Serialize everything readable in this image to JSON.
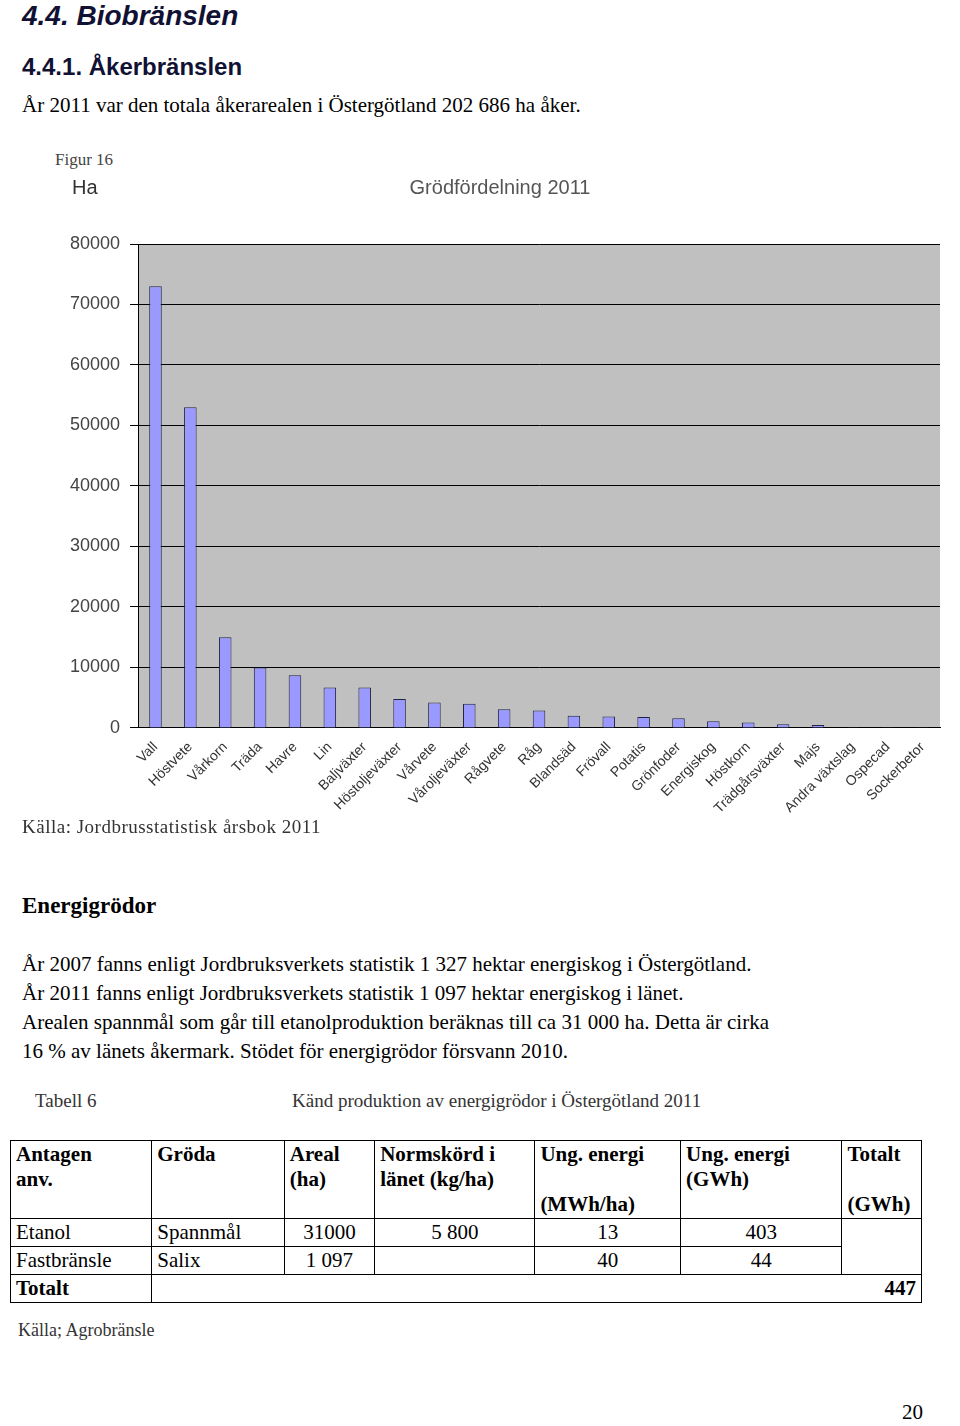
{
  "heading": "4.4. Biobränslen",
  "subheading": "4.4.1. Åkerbränslen",
  "intro": "År 2011 var den totala åkerarealen i Östergötland 202 686 ha åker.",
  "figure_label": "Figur 16",
  "unit_label": "Ha",
  "chart_data": {
    "type": "bar",
    "title": "Grödfördelning 2011",
    "categories": [
      "Vall",
      "Höstvete",
      "Vårkorn",
      "Träda",
      "Havre",
      "Lin",
      "Baljväxter",
      "Höstoljeväxter",
      "Vårvete",
      "Våroljeväxter",
      "Rågvete",
      "Råg",
      "Blandsäd",
      "Frövall",
      "Potatis",
      "Grönfoder",
      "Energiskog",
      "Höstkorn",
      "Trädgårsväxter",
      "Majs",
      "Andra växtslag",
      "Ospecad",
      "Sockerbetor"
    ],
    "values": [
      73000,
      53000,
      15000,
      10000,
      8700,
      6700,
      6700,
      4800,
      4200,
      4000,
      3100,
      2900,
      2000,
      1900,
      1800,
      1600,
      1100,
      900,
      600,
      500,
      100,
      100,
      100
    ],
    "color": "#9999ff",
    "ylim": [
      0,
      80000
    ],
    "yticks": [
      0,
      10000,
      20000,
      30000,
      40000,
      50000,
      60000,
      70000,
      80000
    ],
    "grid": true
  },
  "chart_source": "Källa: Jordbrusstatistisk årsbok 2011",
  "section_title": "Energigrödor",
  "paragraph_lines": [
    "År 2007 fanns enligt Jordbruksverkets statistik 1 327 hektar energiskog i Östergötland.",
    "År 2011 fanns enligt Jordbruksverkets statistik 1 097 hektar energiskog i länet.",
    "Arealen spannmål som går till etanolproduktion beräknas till ca 31 000 ha. Detta är cirka",
    "16 % av länets åkermark. Stödet för energigrödor försvann 2010."
  ],
  "table_caption": "Tabell 6",
  "table_name": "Känd produktion av energigrödor i Östergötland 2011",
  "table": {
    "header": [
      "Antagen\nanv.",
      "Gröda",
      "Areal\n(ha)",
      "Normskörd i\nlänet (kg/ha)",
      "Ung. energi\n\n(MWh/ha)",
      "Ung. energi\n(GWh)",
      "Totalt\n\n(GWh)"
    ],
    "rows": [
      [
        "Etanol",
        "Spannmål",
        "31000",
        "5 800",
        "13",
        "403"
      ],
      [
        "Fastbränsle",
        "Salix",
        "1 097",
        null,
        "40",
        "44"
      ]
    ],
    "total": {
      "label": "Totalt",
      "value": "447"
    }
  },
  "table_source": "Källa; Agrobränsle",
  "page_number": "20"
}
